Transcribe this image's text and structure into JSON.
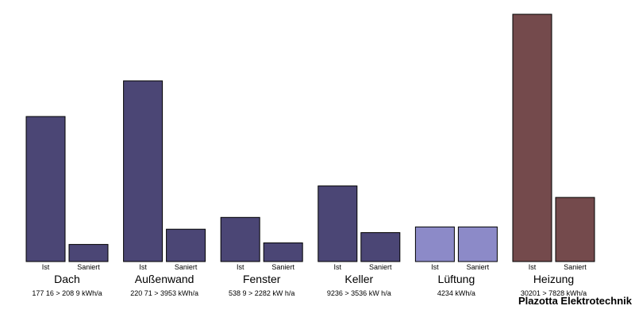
{
  "chart_data": {
    "type": "bar",
    "bar_labels": [
      "Ist",
      "Saniert"
    ],
    "ylim": [
      0,
      30201
    ],
    "categories": [
      {
        "name": "Dach",
        "ist": 17716,
        "saniert": 2089,
        "summary": "177 16 > 208 9 kWh/a",
        "color": "#4b4675"
      },
      {
        "name": "Außenwand",
        "ist": 22071,
        "saniert": 3953,
        "summary": "220 71 > 3953 kWh/a",
        "color": "#4b4675"
      },
      {
        "name": "Fenster",
        "ist": 5389,
        "saniert": 2282,
        "summary": "538 9 > 2282 kW h/a",
        "color": "#4b4675"
      },
      {
        "name": "Keller",
        "ist": 9236,
        "saniert": 3536,
        "summary": "9236 > 3536 kW h/a",
        "color": "#4b4675"
      },
      {
        "name": "Lüftung",
        "ist": 4234,
        "saniert": 4234,
        "summary": "4234 kWh/a",
        "color": "#8c8ac8"
      },
      {
        "name": "Heizung",
        "ist": 30201,
        "saniert": 7828,
        "summary": "30201 > 7828 kWh/a",
        "color": "#744a4c"
      }
    ]
  },
  "brand": "Plazotta Elektrotechnik"
}
